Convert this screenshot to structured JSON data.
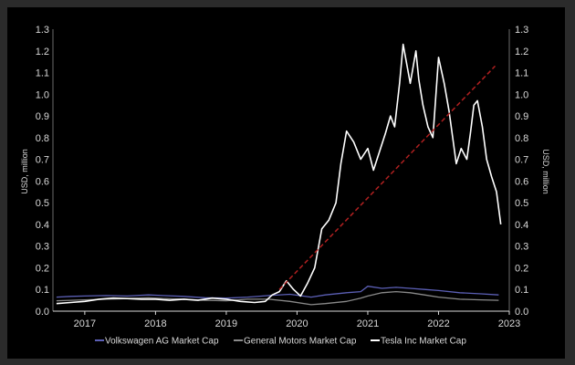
{
  "chart_data": {
    "type": "line",
    "title": "",
    "xlabel": "",
    "ylabel": "USD, million",
    "ylabel_right": "USD, million",
    "xlim": [
      2016.55,
      2023.0
    ],
    "ylim": [
      0.0,
      1.3
    ],
    "x_ticks": [
      "2017",
      "2018",
      "2019",
      "2020",
      "2021",
      "2022",
      "2023"
    ],
    "y_ticks": [
      "0.0",
      "0.1",
      "0.2",
      "0.3",
      "0.4",
      "0.5",
      "0.6",
      "0.7",
      "0.8",
      "0.9",
      "1.0",
      "1.1",
      "1.2",
      "1.3"
    ],
    "grid": false,
    "legend_position": "bottom",
    "series": [
      {
        "name": "Volkswagen AG Market Cap",
        "color": "#5b5fb5",
        "x": [
          2016.6,
          2016.8,
          2017.0,
          2017.3,
          2017.6,
          2017.9,
          2018.1,
          2018.4,
          2018.7,
          2019.0,
          2019.3,
          2019.6,
          2019.9,
          2020.2,
          2020.4,
          2020.7,
          2020.9,
          2021.0,
          2021.2,
          2021.4,
          2021.6,
          2021.8,
          2022.0,
          2022.3,
          2022.6,
          2022.85
        ],
        "y": [
          0.065,
          0.068,
          0.07,
          0.072,
          0.07,
          0.075,
          0.072,
          0.068,
          0.062,
          0.06,
          0.065,
          0.072,
          0.078,
          0.065,
          0.075,
          0.085,
          0.09,
          0.115,
          0.105,
          0.11,
          0.105,
          0.1,
          0.095,
          0.085,
          0.08,
          0.075
        ]
      },
      {
        "name": "General Motors Market Cap",
        "color": "#8a8a8a",
        "x": [
          2016.6,
          2016.8,
          2017.0,
          2017.3,
          2017.6,
          2017.9,
          2018.1,
          2018.4,
          2018.7,
          2019.0,
          2019.3,
          2019.6,
          2019.9,
          2020.2,
          2020.4,
          2020.7,
          2020.9,
          2021.0,
          2021.2,
          2021.4,
          2021.6,
          2021.8,
          2022.0,
          2022.3,
          2022.6,
          2022.85
        ],
        "y": [
          0.048,
          0.05,
          0.052,
          0.055,
          0.058,
          0.062,
          0.058,
          0.055,
          0.05,
          0.048,
          0.055,
          0.055,
          0.045,
          0.03,
          0.035,
          0.045,
          0.06,
          0.07,
          0.085,
          0.09,
          0.085,
          0.075,
          0.065,
          0.055,
          0.052,
          0.05
        ]
      },
      {
        "name": "Tesla Inc Market Cap",
        "color": "#ffffff",
        "x": [
          2016.6,
          2016.8,
          2017.0,
          2017.2,
          2017.4,
          2017.6,
          2017.8,
          2018.0,
          2018.2,
          2018.4,
          2018.6,
          2018.8,
          2019.0,
          2019.2,
          2019.4,
          2019.55,
          2019.65,
          2019.75,
          2019.85,
          2019.95,
          2020.05,
          2020.1,
          2020.15,
          2020.25,
          2020.35,
          2020.45,
          2020.55,
          2020.62,
          2020.7,
          2020.8,
          2020.9,
          2021.0,
          2021.08,
          2021.15,
          2021.25,
          2021.32,
          2021.38,
          2021.45,
          2021.5,
          2021.6,
          2021.68,
          2021.72,
          2021.78,
          2021.85,
          2021.92,
          2022.0,
          2022.08,
          2022.15,
          2022.2,
          2022.25,
          2022.32,
          2022.4,
          2022.45,
          2022.5,
          2022.55,
          2022.62,
          2022.68,
          2022.75,
          2022.82,
          2022.88
        ],
        "y": [
          0.035,
          0.04,
          0.045,
          0.055,
          0.06,
          0.058,
          0.055,
          0.055,
          0.05,
          0.055,
          0.05,
          0.06,
          0.055,
          0.045,
          0.04,
          0.045,
          0.075,
          0.09,
          0.14,
          0.1,
          0.07,
          0.1,
          0.13,
          0.2,
          0.38,
          0.42,
          0.5,
          0.68,
          0.83,
          0.78,
          0.7,
          0.75,
          0.65,
          0.72,
          0.82,
          0.9,
          0.85,
          1.05,
          1.23,
          1.05,
          1.2,
          1.07,
          0.95,
          0.85,
          0.8,
          1.17,
          1.05,
          0.92,
          0.8,
          0.68,
          0.75,
          0.7,
          0.82,
          0.95,
          0.97,
          0.85,
          0.7,
          0.62,
          0.55,
          0.4
        ]
      }
    ],
    "trend_line": {
      "color": "#b02020",
      "style": "dashed",
      "x": [
        2019.75,
        2022.8
      ],
      "y": [
        0.1,
        1.13
      ]
    }
  }
}
